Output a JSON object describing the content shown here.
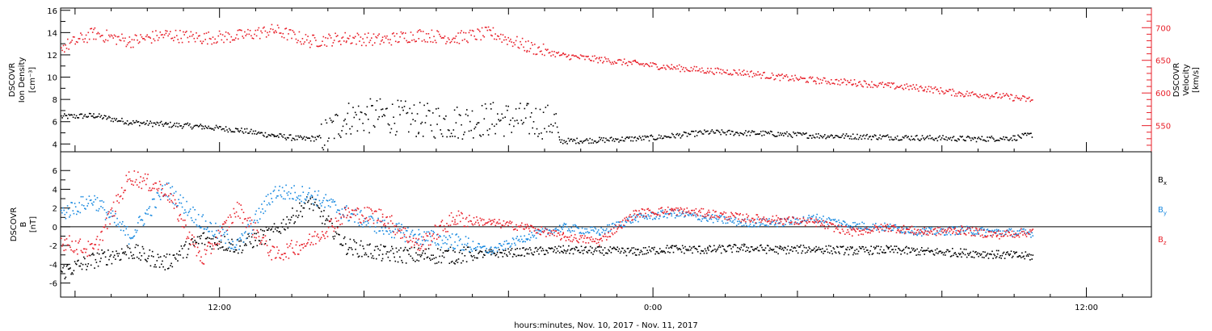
{
  "figure": {
    "xaxis_title": "hours:minutes, Nov. 10, 2017 - Nov. 11, 2017",
    "x_ticks": [
      "12:00",
      "0:00",
      "12:00"
    ],
    "colors": {
      "axes": "#000000",
      "black": "#000000",
      "red": "#e8202a",
      "blue": "#1a8ae0"
    }
  },
  "chart_data": [
    {
      "type": "scatter",
      "panel": "top",
      "ylabel_left": [
        "DSCOVR",
        "Ion Density",
        "[cm⁻³]"
      ],
      "ylabel_right": [
        "DSCOVR",
        "Velocity",
        "[km/s]"
      ],
      "x_unit": "hours since Nov. 10, 2017 0:00",
      "xlim": [
        7.6,
        37.8
      ],
      "ylim_left": [
        3.3,
        16.2
      ],
      "y_ticks_left": [
        4,
        6,
        8,
        10,
        12,
        14,
        16
      ],
      "ylim_right": [
        510,
        730
      ],
      "y_ticks_right": [
        550,
        600,
        650,
        700
      ],
      "grid": false,
      "series": [
        {
          "name": "",
          "color": "black",
          "axis": "left",
          "x": [
            7.6,
            8.5,
            9.5,
            10.5,
            11.5,
            12.5,
            13.5,
            14.3,
            14.8,
            15.5,
            16.5,
            17.5,
            18.5,
            19.5,
            20.5,
            21.3,
            21.4,
            22.5,
            24.0,
            25.5,
            27.0,
            28.5,
            30.0,
            31.5,
            33.0,
            34.0,
            34.5
          ],
          "y": [
            6.5,
            6.6,
            6.0,
            5.8,
            5.6,
            5.3,
            4.8,
            4.5,
            4.6,
            6.4,
            6.6,
            6.2,
            6.0,
            6.3,
            6.2,
            6.0,
            4.3,
            4.4,
            4.6,
            5.1,
            5.0,
            4.8,
            4.7,
            4.6,
            4.5,
            4.6,
            4.9
          ]
        },
        {
          "name": "",
          "color": "red",
          "axis": "right",
          "x": [
            7.6,
            8.5,
            9.5,
            10.5,
            11.5,
            12.5,
            13.5,
            14.5,
            15.5,
            16.5,
            17.5,
            18.5,
            19.5,
            20.5,
            21.5,
            22.5,
            23.5,
            24.5,
            25.5,
            26.5,
            27.5,
            28.5,
            29.5,
            30.5,
            31.5,
            32.5,
            33.5,
            34.5
          ],
          "y": [
            670,
            692,
            680,
            690,
            685,
            688,
            697,
            680,
            685,
            682,
            690,
            685,
            693,
            672,
            658,
            652,
            646,
            640,
            635,
            632,
            625,
            620,
            617,
            612,
            608,
            600,
            597,
            590
          ]
        }
      ]
    },
    {
      "type": "scatter",
      "panel": "bottom",
      "ylabel_left": [
        "DSCOVR",
        "B",
        "[nT]"
      ],
      "xlim": [
        7.6,
        37.8
      ],
      "ylim": [
        -7.5,
        8
      ],
      "y_ticks": [
        -6,
        -4,
        -2,
        0,
        2,
        4,
        6
      ],
      "zero_line": true,
      "grid": false,
      "legend_placement": "right",
      "series": [
        {
          "name": "Bx",
          "label_main": "B",
          "label_sub": "x",
          "color": "black",
          "x": [
            7.6,
            8.5,
            9.5,
            10.5,
            11.5,
            12.5,
            13.5,
            14.5,
            15.5,
            16.5,
            17.5,
            18.5,
            19.5,
            20.5,
            21.5,
            22.5,
            23.5,
            24.5,
            25.5,
            26.5,
            27.5,
            28.5,
            29.5,
            30.5,
            31.5,
            32.5,
            33.5,
            34.5
          ],
          "y": [
            -4.8,
            -3.5,
            -2.5,
            -3.8,
            -1.2,
            -2.0,
            -0.5,
            2.8,
            -2.0,
            -2.8,
            -3.0,
            -3.0,
            -2.8,
            -2.6,
            -2.4,
            -2.5,
            -2.6,
            -2.3,
            -2.4,
            -2.2,
            -2.4,
            -2.3,
            -2.5,
            -2.4,
            -2.6,
            -2.7,
            -2.9,
            -3.1
          ]
        },
        {
          "name": "By",
          "label_main": "B",
          "label_sub": "y",
          "color": "blue",
          "x": [
            7.6,
            8.5,
            9.5,
            10.5,
            11.5,
            12.5,
            13.5,
            14.5,
            15.5,
            16.5,
            17.5,
            18.5,
            19.5,
            20.5,
            21.5,
            22.5,
            23.5,
            24.5,
            25.5,
            26.5,
            27.5,
            28.5,
            29.5,
            30.5,
            31.5,
            32.5,
            33.5,
            34.5
          ],
          "y": [
            1.5,
            3.0,
            -1.0,
            4.2,
            0.5,
            -2.0,
            3.8,
            3.5,
            1.5,
            0.0,
            -1.0,
            -1.5,
            -2.5,
            -1.0,
            0.0,
            -0.5,
            1.0,
            1.5,
            1.0,
            0.5,
            0.5,
            1.0,
            0.2,
            0.0,
            -0.5,
            -0.3,
            -0.5,
            -0.6
          ]
        },
        {
          "name": "Bz",
          "label_main": "B",
          "label_sub": "z",
          "color": "red",
          "x": [
            7.6,
            8.5,
            9.5,
            10.5,
            11.5,
            12.5,
            13.5,
            14.5,
            15.5,
            16.5,
            17.5,
            18.5,
            19.5,
            20.5,
            21.5,
            22.5,
            23.5,
            24.5,
            25.5,
            26.5,
            27.5,
            28.5,
            29.5,
            30.5,
            31.5,
            32.5,
            33.5,
            34.5
          ],
          "y": [
            -1.5,
            -2.5,
            5.5,
            4.0,
            -3.5,
            2.0,
            -3.0,
            -1.5,
            1.5,
            1.2,
            -2.0,
            1.0,
            0.5,
            0.0,
            -1.0,
            -1.5,
            1.5,
            1.8,
            1.5,
            1.0,
            0.8,
            0.5,
            -0.5,
            0.0,
            -0.5,
            -0.3,
            -0.8,
            -0.5
          ]
        }
      ]
    }
  ]
}
